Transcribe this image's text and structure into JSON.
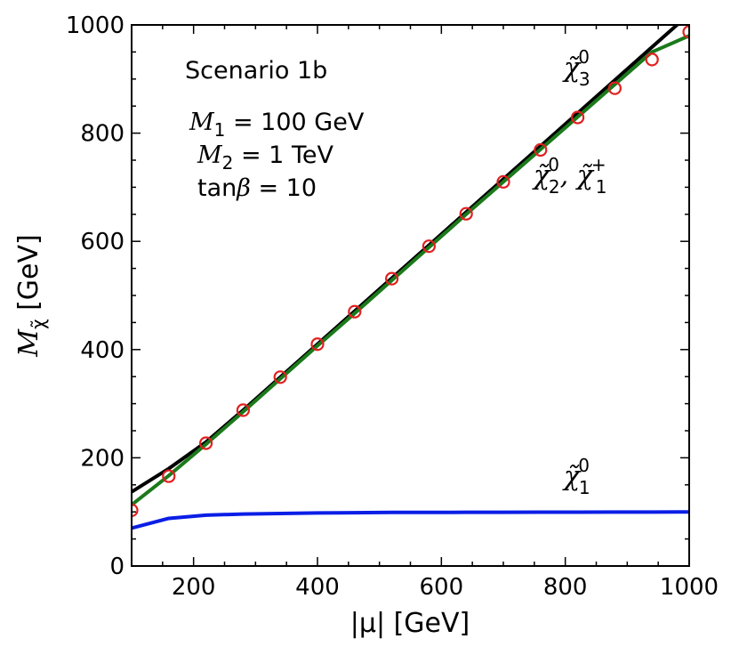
{
  "chart_data": {
    "type": "line",
    "title": "",
    "xlabel": "|μ| [GeV]",
    "ylabel_symbol": "M",
    "ylabel_sub": "χ̃",
    "ylabel_unit": " [GeV]",
    "xlim": [
      100,
      1000
    ],
    "ylim": [
      0,
      1000
    ],
    "xticks": [
      200,
      400,
      600,
      800,
      1000
    ],
    "yticks": [
      0,
      200,
      400,
      600,
      800,
      1000
    ],
    "xtick_labels": [
      "200",
      "400",
      "600",
      "800",
      "1000"
    ],
    "ytick_labels": [
      "0",
      "200",
      "400",
      "600",
      "800",
      "1000"
    ],
    "x_minor_step": 50,
    "y_minor_step": 50,
    "series": [
      {
        "name": "chi3_0",
        "color": "#000000",
        "kind": "line",
        "x": [
          100,
          160,
          220,
          280,
          340,
          400,
          460,
          520,
          580,
          640,
          700,
          760,
          820,
          880,
          940,
          1000
        ],
        "y": [
          137,
          180,
          229,
          288,
          349,
          410,
          471,
          532,
          593,
          654,
          715,
          776,
          837,
          898,
          959,
          1020
        ]
      },
      {
        "name": "chi2_0_chi1_plus",
        "color": "#1b7a1b",
        "kind": "line",
        "x": [
          100,
          160,
          220,
          280,
          340,
          400,
          460,
          520,
          580,
          640,
          700,
          760,
          820,
          880,
          940,
          1000
        ],
        "y": [
          113,
          167,
          225,
          285,
          346,
          407,
          467,
          528,
          589,
          650,
          710,
          770,
          830,
          890,
          950,
          980
        ]
      },
      {
        "name": "chi1_0",
        "color": "#0a1ee6",
        "kind": "line",
        "x": [
          100,
          160,
          220,
          280,
          340,
          400,
          460,
          520,
          580,
          640,
          700,
          760,
          820,
          880,
          940,
          1000
        ],
        "y": [
          70,
          88,
          94,
          96,
          97,
          98,
          98.5,
          99,
          99,
          99.2,
          99.4,
          99.5,
          99.6,
          99.7,
          99.8,
          99.9
        ]
      },
      {
        "name": "markers",
        "color": "#e02020",
        "kind": "scatter",
        "x": [
          100,
          160,
          220,
          280,
          340,
          400,
          460,
          520,
          580,
          640,
          700,
          760,
          820,
          880,
          940,
          1000
        ],
        "y": [
          103,
          166,
          227,
          288,
          349,
          410,
          470,
          531,
          591,
          651,
          710,
          769,
          829,
          883,
          936,
          987
        ]
      }
    ],
    "annotations": {
      "scenario": "Scenario 1b",
      "m1": "M",
      "m1_sub": "1",
      "m1_val": " = 100 GeV",
      "m2": "M",
      "m2_sub": "2",
      "m2_val": " = 1 TeV",
      "tanb": "tan",
      "tanb_beta": "β",
      "tanb_val": " = 10"
    },
    "curve_labels": {
      "chi3": {
        "sym": "χ̃",
        "sup": "0",
        "sub": "3"
      },
      "chi2": {
        "sym": "χ̃",
        "sup": "0",
        "sub": "2",
        "sep": ", ",
        "sym2": "χ̃",
        "sup2": "+",
        "sub2": "1"
      },
      "chi1": {
        "sym": "χ̃",
        "sup": "0",
        "sub": "1"
      }
    }
  }
}
